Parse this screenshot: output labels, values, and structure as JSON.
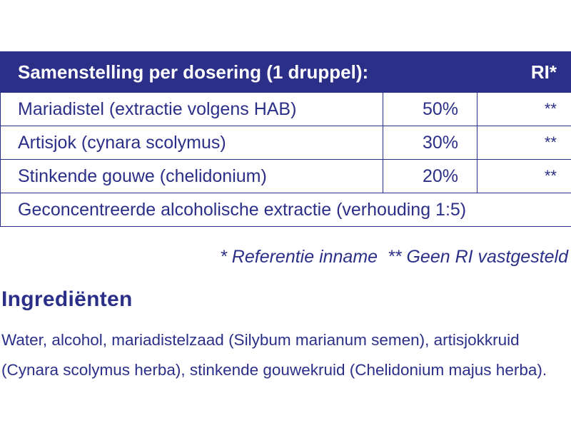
{
  "composition_table": {
    "header": {
      "title": "Samenstelling per dosering (1 druppel):",
      "ri_label": "RI*"
    },
    "rows": [
      {
        "name": "Mariadistel (extractie volgens HAB)",
        "percentage": "50%",
        "ri": "**"
      },
      {
        "name": "Artisjok (cynara scolymus)",
        "percentage": "30%",
        "ri": "**"
      },
      {
        "name": "Stinkende gouwe (chelidonium)",
        "percentage": "20%",
        "ri": "**"
      }
    ],
    "note": "Geconcentreerde alcoholische extractie (verhouding 1:5)"
  },
  "footnotes": {
    "ri_reference": "* Referentie inname",
    "no_ri": "** Geen RI vastgesteld"
  },
  "ingredients": {
    "title": "Ingrediënten",
    "line1": "Water, alcohol, mariadistelzaad (Silybum marianum semen), artisjokkruid",
    "line2": "(Cynara scolymus herba), stinkende gouwekruid (Chelidonium majus herba)."
  },
  "colors": {
    "brand_navy": "#2b2f88",
    "background": "#ffffff"
  }
}
